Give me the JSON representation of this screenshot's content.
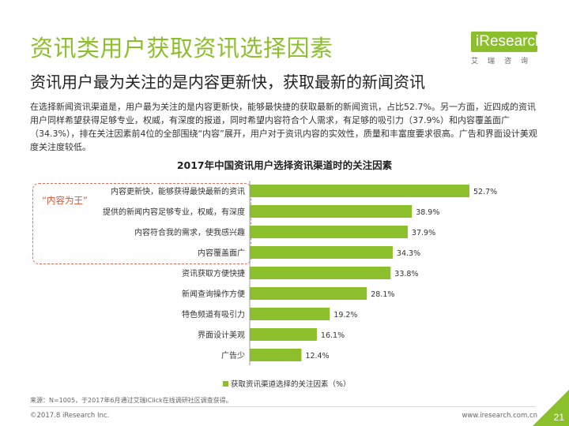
{
  "page": {
    "title": "资讯类用户获取资讯选择因素",
    "subtitle": "资讯用户最为关注的是内容更新快，获取最新的新闻资讯",
    "description": "在选择新闻资讯渠道是，用户最为关注的是内容更新快，能够最快捷的获取最新的新闻资讯，占比52.7%。另一方面，近四成的资讯用户同样希望获得足够专业，权威，有深度的报道，同时希望内容符合个人需求，有足够的吸引力（37.9%）和内容覆盖面广（34.3%），排在关注因素前4位的全部围绕“内容”展开，用户对于资讯内容的实效性，质量和丰富度要求很高。广告和界面设计美观度关注度较低。",
    "highlight_label": "“内容为王”",
    "source": "来源：N=1005，于2017年6月通过艾瑞iClick在线调研社区调查获得。",
    "copyright": "©2017.8 iResearch Inc.",
    "website": "www.iresearch.com.cn",
    "page_number": "21"
  },
  "logo": {
    "name": "iResearch",
    "sub": "艾瑞咨询"
  },
  "colors": {
    "accent": "#8cbf2c",
    "highlight": "#e46a5a",
    "text": "#333333"
  },
  "chart_data": {
    "type": "bar",
    "orientation": "horizontal",
    "title": "2017年中国资讯用户选择资讯渠道时的关注因素",
    "categories": [
      "内容更新快，能够获得最快最新的资讯",
      "提供的新闻内容足够专业，权威，有深度",
      "内容符合我的需求，使我感兴趣",
      "内容覆盖面广",
      "资讯获取方便快捷",
      "新闻查询操作方便",
      "特色频道有吸引力",
      "界面设计美观",
      "广告少"
    ],
    "series": [
      {
        "name": "获取资讯渠道选择的关注因素（%）",
        "values": [
          52.7,
          38.9,
          37.9,
          34.3,
          33.8,
          28.1,
          19.2,
          16.1,
          12.4
        ],
        "labels": [
          "52.7%",
          "38.9%",
          "37.9%",
          "34.3%",
          "33.8%",
          "28.1%",
          "19.2%",
          "16.1%",
          "12.4%"
        ],
        "color": "#8cbf2c"
      }
    ],
    "xlim": [
      0,
      52.7
    ],
    "grid": false,
    "legend": "bottom"
  }
}
